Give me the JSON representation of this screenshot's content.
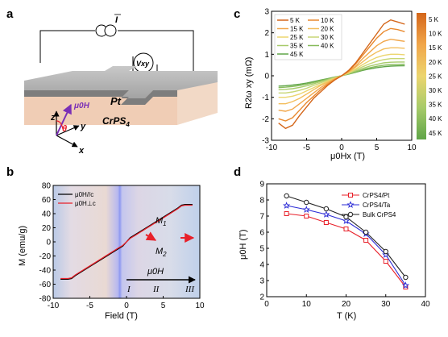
{
  "panel_a": {
    "letter": "a",
    "current_label": "I",
    "voltage_label": "Vxy",
    "pt_label": "Pt",
    "crps4_label": "CrPS",
    "crps4_sub": "4",
    "field_label": "μ0H",
    "theta_label": "θ",
    "axis_x": "x",
    "axis_y": "y",
    "axis_z": "z"
  },
  "panel_b": {
    "letter": "b",
    "ylabel": "M (emu/g)",
    "xlabel": "Field (T)",
    "region_labels": [
      "I",
      "II",
      "III"
    ],
    "m1_label": "M",
    "m1_sub": "1",
    "m2_label": "M",
    "m2_sub": "2",
    "field_label": "μ0H",
    "legend": [
      {
        "label": "μ0H//c",
        "color": "#000000"
      },
      {
        "label": "μ0H⊥c",
        "color": "#e8202a"
      }
    ]
  },
  "panel_c": {
    "letter": "c",
    "ylabel": "R2ω xy (mΩ)",
    "xlabel": "μ0Hx (T)",
    "legend_col1": [
      "5 K",
      "15 K",
      "25 K",
      "35 K",
      "45 K"
    ],
    "legend_col2": [
      "10 K",
      "20 K",
      "30 K",
      "40 K"
    ],
    "colorbar_labels": [
      "5 K",
      "10 K",
      "15 K",
      "20 K",
      "25 K",
      "30 K",
      "35 K",
      "40 K",
      "45 K"
    ],
    "colors": [
      "#d4661a",
      "#e9892e",
      "#f1a64a",
      "#f3be5c",
      "#ecd56e",
      "#c8d675",
      "#a7cb6a",
      "#86bb5a",
      "#5fa548"
    ]
  },
  "panel_d": {
    "letter": "d",
    "ylabel": "μ0H (T)",
    "xlabel": "T (K)",
    "legend": [
      {
        "label": "CrPS4/Pt",
        "color": "#e8202a"
      },
      {
        "label": "CrPS4/Ta",
        "color": "#2b2bd6"
      },
      {
        "label": "Bulk CrPS4",
        "color": "#222222"
      }
    ]
  },
  "chart_data": [
    {
      "panel": "b",
      "type": "line",
      "xlabel": "Field (T)",
      "ylabel": "M (emu/g)",
      "xlim": [
        -10,
        10
      ],
      "ylim": [
        -80,
        80
      ],
      "xticks": [
        -10,
        -5,
        0,
        5,
        10
      ],
      "yticks": [
        -80,
        -60,
        -40,
        -20,
        0,
        20,
        40,
        60,
        80
      ],
      "series": [
        {
          "name": "μ0H//c",
          "color": "#000000",
          "x": [
            -9,
            -8,
            -7.5,
            -7,
            -5,
            -3,
            -1,
            -0.5,
            0,
            0.5,
            1,
            3,
            5,
            7,
            7.5,
            8,
            9
          ],
          "y": [
            -53,
            -53,
            -52,
            -48,
            -35,
            -22,
            -9,
            -6,
            0,
            6,
            9,
            22,
            35,
            48,
            52,
            53,
            53
          ]
        },
        {
          "name": "μ0H⊥c",
          "color": "#e8202a",
          "x": [
            -9,
            -8,
            -7.5,
            -7,
            -5,
            -3,
            -1,
            -0.5,
            0,
            0.5,
            1,
            3,
            5,
            7,
            7.5,
            8,
            9
          ],
          "y": [
            -52,
            -52,
            -51,
            -47,
            -34,
            -21,
            -8,
            -5,
            0,
            5,
            8,
            21,
            34,
            47,
            51,
            52,
            52
          ]
        }
      ]
    },
    {
      "panel": "c",
      "type": "line",
      "xlabel": "μ0Hx (T)",
      "ylabel": "R2ω xy (mΩ)",
      "xlim": [
        -10,
        10
      ],
      "ylim": [
        -3,
        3
      ],
      "xticks": [
        -10,
        -5,
        0,
        5,
        10
      ],
      "yticks": [
        -3,
        -2,
        -1,
        0,
        1,
        2,
        3
      ],
      "x": [
        -9,
        -8,
        -7,
        -6,
        -5,
        -4,
        -3,
        -2,
        -1,
        0,
        1,
        2,
        3,
        4,
        5,
        6,
        7,
        8,
        9
      ],
      "series": [
        {
          "name": "5 K",
          "y": [
            -2.2,
            -2.45,
            -2.3,
            -1.85,
            -1.45,
            -1.05,
            -0.75,
            -0.45,
            -0.2,
            0,
            0.25,
            0.6,
            1.05,
            1.5,
            1.95,
            2.4,
            2.6,
            2.5,
            2.4
          ]
        },
        {
          "name": "10 K",
          "y": [
            -2.0,
            -2.1,
            -1.95,
            -1.6,
            -1.25,
            -0.95,
            -0.65,
            -0.4,
            -0.18,
            0,
            0.22,
            0.55,
            0.95,
            1.35,
            1.75,
            2.05,
            2.2,
            2.15,
            2.05
          ]
        },
        {
          "name": "15 K",
          "y": [
            -1.6,
            -1.65,
            -1.55,
            -1.3,
            -1.05,
            -0.8,
            -0.55,
            -0.35,
            -0.15,
            0,
            0.2,
            0.45,
            0.8,
            1.1,
            1.4,
            1.6,
            1.7,
            1.65,
            1.6
          ]
        },
        {
          "name": "20 K",
          "y": [
            -1.3,
            -1.3,
            -1.2,
            -1.05,
            -0.85,
            -0.65,
            -0.45,
            -0.3,
            -0.13,
            0,
            0.17,
            0.4,
            0.65,
            0.9,
            1.1,
            1.25,
            1.3,
            1.3,
            1.28
          ]
        },
        {
          "name": "25 K",
          "y": [
            -1.0,
            -1.0,
            -0.95,
            -0.85,
            -0.7,
            -0.55,
            -0.4,
            -0.25,
            -0.11,
            0,
            0.14,
            0.32,
            0.52,
            0.7,
            0.85,
            0.95,
            1.0,
            1.0,
            0.98
          ]
        },
        {
          "name": "30 K",
          "y": [
            -0.8,
            -0.8,
            -0.75,
            -0.68,
            -0.58,
            -0.45,
            -0.33,
            -0.21,
            -0.09,
            0,
            0.12,
            0.27,
            0.42,
            0.56,
            0.67,
            0.75,
            0.8,
            0.8,
            0.8
          ]
        },
        {
          "name": "35 K",
          "y": [
            -0.65,
            -0.63,
            -0.6,
            -0.54,
            -0.47,
            -0.37,
            -0.27,
            -0.18,
            -0.08,
            0,
            0.1,
            0.22,
            0.34,
            0.45,
            0.53,
            0.6,
            0.63,
            0.64,
            0.64
          ]
        },
        {
          "name": "40 K",
          "y": [
            -0.55,
            -0.53,
            -0.5,
            -0.45,
            -0.39,
            -0.31,
            -0.23,
            -0.15,
            -0.07,
            0,
            0.09,
            0.18,
            0.28,
            0.37,
            0.44,
            0.49,
            0.52,
            0.53,
            0.54
          ]
        },
        {
          "name": "45 K",
          "y": [
            -0.48,
            -0.46,
            -0.43,
            -0.39,
            -0.34,
            -0.27,
            -0.2,
            -0.13,
            -0.06,
            0,
            0.08,
            0.16,
            0.25,
            0.32,
            0.38,
            0.42,
            0.45,
            0.46,
            0.47
          ]
        }
      ]
    },
    {
      "panel": "d",
      "type": "line",
      "xlabel": "T (K)",
      "ylabel": "μ0H (T)",
      "xlim": [
        0,
        40
      ],
      "ylim": [
        2,
        9
      ],
      "xticks": [
        0,
        10,
        20,
        30,
        40
      ],
      "yticks": [
        2,
        3,
        4,
        5,
        6,
        7,
        8,
        9
      ],
      "x": [
        5,
        10,
        15,
        20,
        25,
        30,
        35
      ],
      "series": [
        {
          "name": "CrPS4/Pt",
          "y": [
            7.15,
            7.0,
            6.6,
            6.2,
            5.5,
            4.2,
            2.6
          ],
          "marker": "square"
        },
        {
          "name": "CrPS4/Ta",
          "y": [
            7.65,
            7.4,
            7.1,
            6.7,
            5.9,
            4.6,
            2.7
          ],
          "marker": "star"
        },
        {
          "name": "Bulk CrPS4",
          "y": [
            8.25,
            7.85,
            7.45,
            6.95,
            6.0,
            4.8,
            3.2
          ],
          "marker": "circle"
        }
      ]
    }
  ]
}
